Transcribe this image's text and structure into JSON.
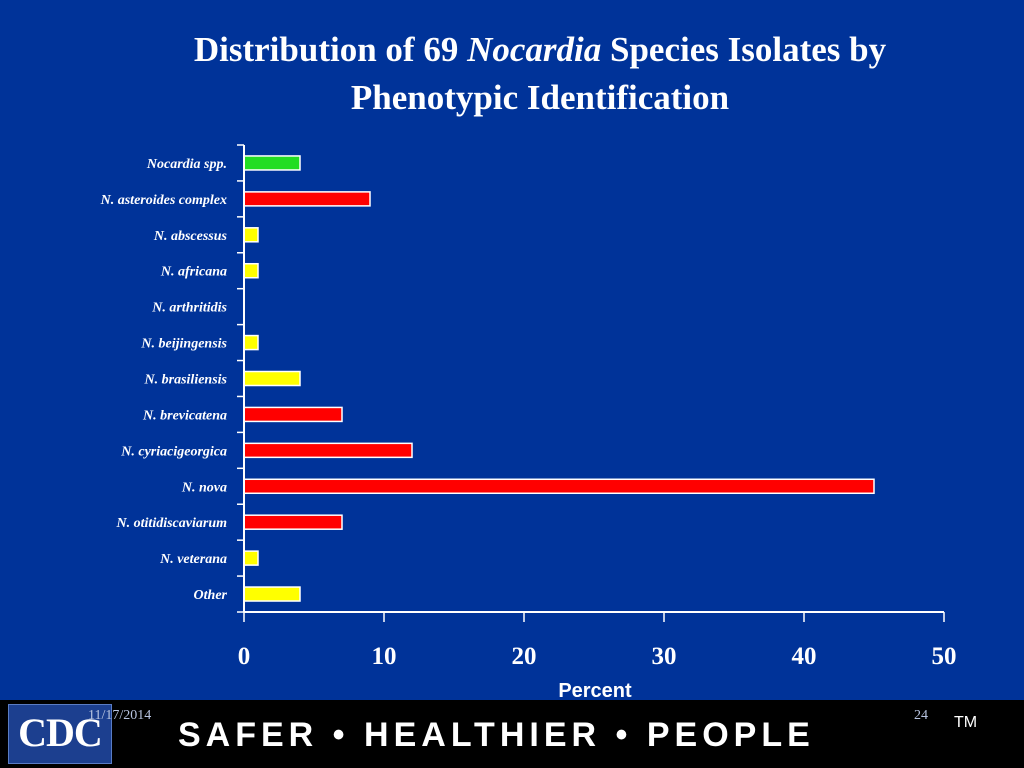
{
  "title": {
    "part1": "Distribution of 69 ",
    "italic": "Nocardia",
    "part2": " Species Isolates by",
    "line2": "Phenotypic Identification"
  },
  "chart_data": {
    "type": "bar",
    "orientation": "horizontal",
    "xlabel": "Percent",
    "xlim": [
      0,
      50
    ],
    "xticks": [
      "0",
      "10",
      "20",
      "30",
      "40",
      "50"
    ],
    "grid": false,
    "categories": [
      "Nocardia spp.",
      "N. asteroides complex",
      "N. abscessus",
      "N. africana",
      "N. arthritidis",
      "N. beijingensis",
      "N. brasiliensis",
      "N. brevicatena",
      "N. cyriacigeorgica",
      "N. nova",
      "N. otitidiscaviarum",
      "N. veterana",
      "Other"
    ],
    "values": [
      4,
      9,
      1,
      1,
      0,
      1,
      4,
      7,
      12,
      45,
      7,
      1,
      4
    ],
    "colors": [
      "#22dd22",
      "#ff0000",
      "#ffff00",
      "#ffff00",
      "#ffff00",
      "#ffff00",
      "#ffff00",
      "#ff0000",
      "#ff0000",
      "#ff0000",
      "#ff0000",
      "#ffff00",
      "#ffff00"
    ]
  },
  "footer": {
    "logo": "CDC",
    "date": "11/17/2014",
    "page": "24",
    "tagline": "SAFER • HEALTHIER • PEOPLE",
    "trademark": "TM"
  }
}
